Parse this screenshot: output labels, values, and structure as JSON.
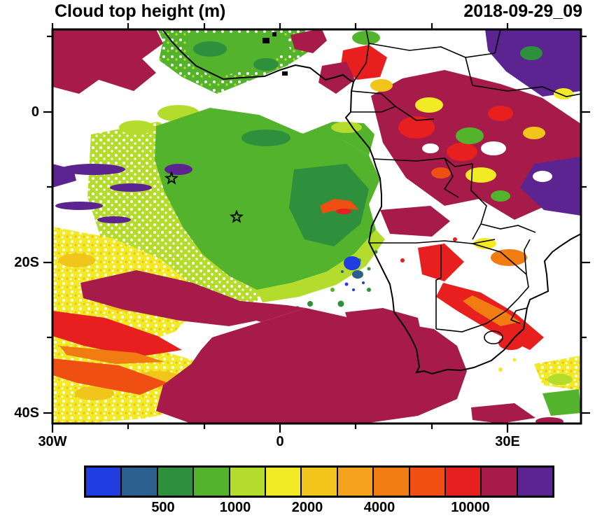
{
  "figure": {
    "title": "Cloud top height (m)",
    "timestamp": "2018-09-29_09"
  },
  "axes": {
    "x_tick_labels": [
      "30W",
      "0",
      "30E"
    ],
    "y_tick_labels": [
      "0",
      "20S",
      "40S"
    ]
  },
  "colorbar": {
    "colors": [
      "#1f3de0",
      "#2d5f8e",
      "#2e8f3c",
      "#54b32c",
      "#b4dc2c",
      "#f2ea25",
      "#f2c51c",
      "#f5a31c",
      "#f07c12",
      "#f04f14",
      "#e81f1f",
      "#a61b4a",
      "#5b2491"
    ],
    "tick_labels": [
      "500",
      "1000",
      "2000",
      "4000",
      "10000"
    ]
  },
  "chart_data": {
    "type": "heatmap",
    "title": "Cloud top height (m)",
    "timestamp": "2018-09-29_09",
    "units": "m",
    "x_axis": {
      "labeled_ticks": [
        "30W",
        "0",
        "30E"
      ],
      "tick_interval_deg": 10,
      "range_lon_deg": [
        -30,
        40
      ]
    },
    "y_axis": {
      "labeled_ticks": [
        "0",
        "20S",
        "40S"
      ],
      "tick_interval_deg": 10,
      "range_lat_deg": [
        -41,
        11
      ]
    },
    "palette_hex": [
      "#1f3de0",
      "#2d5f8e",
      "#2e8f3c",
      "#54b32c",
      "#b4dc2c",
      "#f2ea25",
      "#f2c51c",
      "#f5a31c",
      "#f07c12",
      "#f04f14",
      "#e81f1f",
      "#a61b4a",
      "#5b2491"
    ],
    "colorbar_labeled_levels": [
      500,
      1000,
      2000,
      4000,
      10000
    ],
    "markers": [
      {
        "symbol": "star",
        "lon_deg": -14.4,
        "lat_deg": -8.8
      },
      {
        "symbol": "star",
        "lon_deg": -5.7,
        "lat_deg": -14.0
      }
    ],
    "summary_regions": [
      {
        "area": "central South Atlantic",
        "feature": "large green/yellow-green low-cloud deck (~500-1500 m tops)"
      },
      {
        "area": "southwest Atlantic and bottom-center",
        "feature": "extensive dark-red/maroon high cloud (~10000 m tops)"
      },
      {
        "area": "northwest corner and central Africa north of equator",
        "feature": "maroon and red deep convection with purple (>10000 m) patches in NE corner"
      },
      {
        "area": "southwest corner",
        "feature": "yellow/orange/red mid-level cloud streaks (~2000-7000 m)"
      },
      {
        "area": "Namibia/Botswana/South Africa interior",
        "feature": "mostly clear (white) with scattered red/orange bands"
      }
    ]
  }
}
